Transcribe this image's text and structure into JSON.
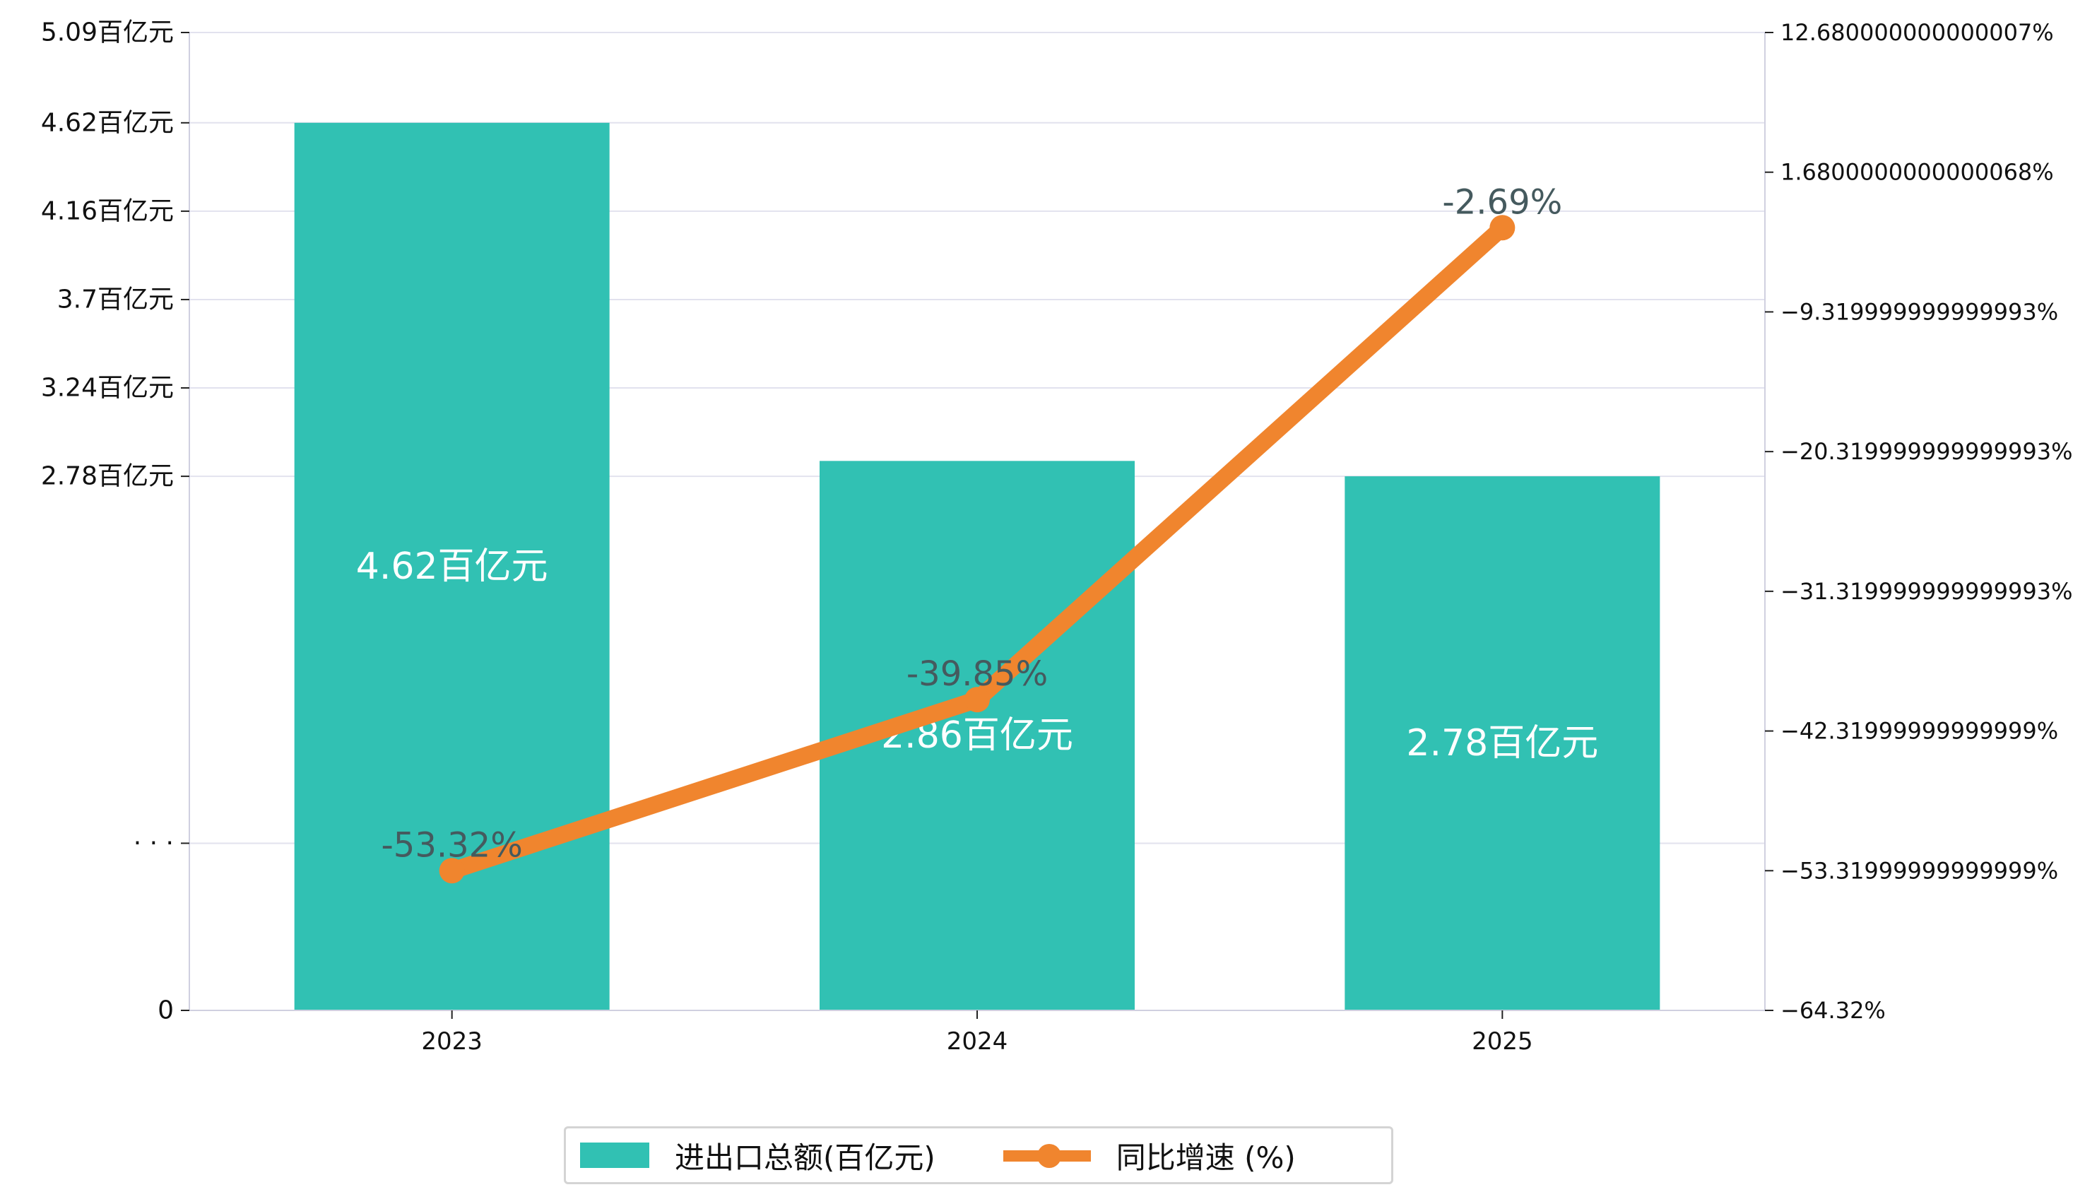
{
  "chart_data": {
    "type": "bar",
    "categories": [
      "2023",
      "2024",
      "2025"
    ],
    "series": [
      {
        "name": "进出口总额(百亿元)",
        "type": "bar",
        "axis": "left",
        "values": [
          4.62,
          2.86,
          2.78
        ],
        "labels": [
          "4.62百亿元",
          "2.86百亿元",
          "2.78百亿元"
        ]
      },
      {
        "name": "同比增速 (%)",
        "type": "line",
        "axis": "right",
        "values": [
          -53.32,
          -39.85,
          -2.69
        ],
        "labels": [
          "-53.32%",
          "-39.85%",
          "-2.69%"
        ]
      }
    ],
    "left_axis": {
      "ylim": [
        0,
        5.09
      ],
      "tick_values": [
        0,
        0.87,
        2.78,
        3.24,
        3.7,
        4.16,
        4.62,
        5.09
      ],
      "tick_labels": [
        "0",
        "· · ·",
        "2.78百亿元",
        "3.24百亿元",
        "3.7百亿元",
        "4.16百亿元",
        "4.62百亿元",
        "5.09百亿元"
      ]
    },
    "right_axis": {
      "ylim": [
        -64.32,
        12.68
      ],
      "tick_values": [
        -64.32,
        -53.32,
        -42.32,
        -31.32,
        -20.32,
        -9.32,
        1.68,
        12.68
      ],
      "tick_labels": [
        "−64.32%",
        "−53.31999999999999%",
        "−42.31999999999999%",
        "−31.319999999999993%",
        "−20.319999999999993%",
        "−9.319999999999993%",
        "1.6800000000000068%",
        "12.680000000000007%"
      ]
    },
    "grid": true,
    "legend_position": "bottom-center",
    "colors": {
      "bar": "#31c1b3",
      "line": "#f0852e",
      "line_label": "#455a5e",
      "bar_label": "#ffffff",
      "grid": "#e2e2ee",
      "axis": "#d0d0e0"
    }
  }
}
